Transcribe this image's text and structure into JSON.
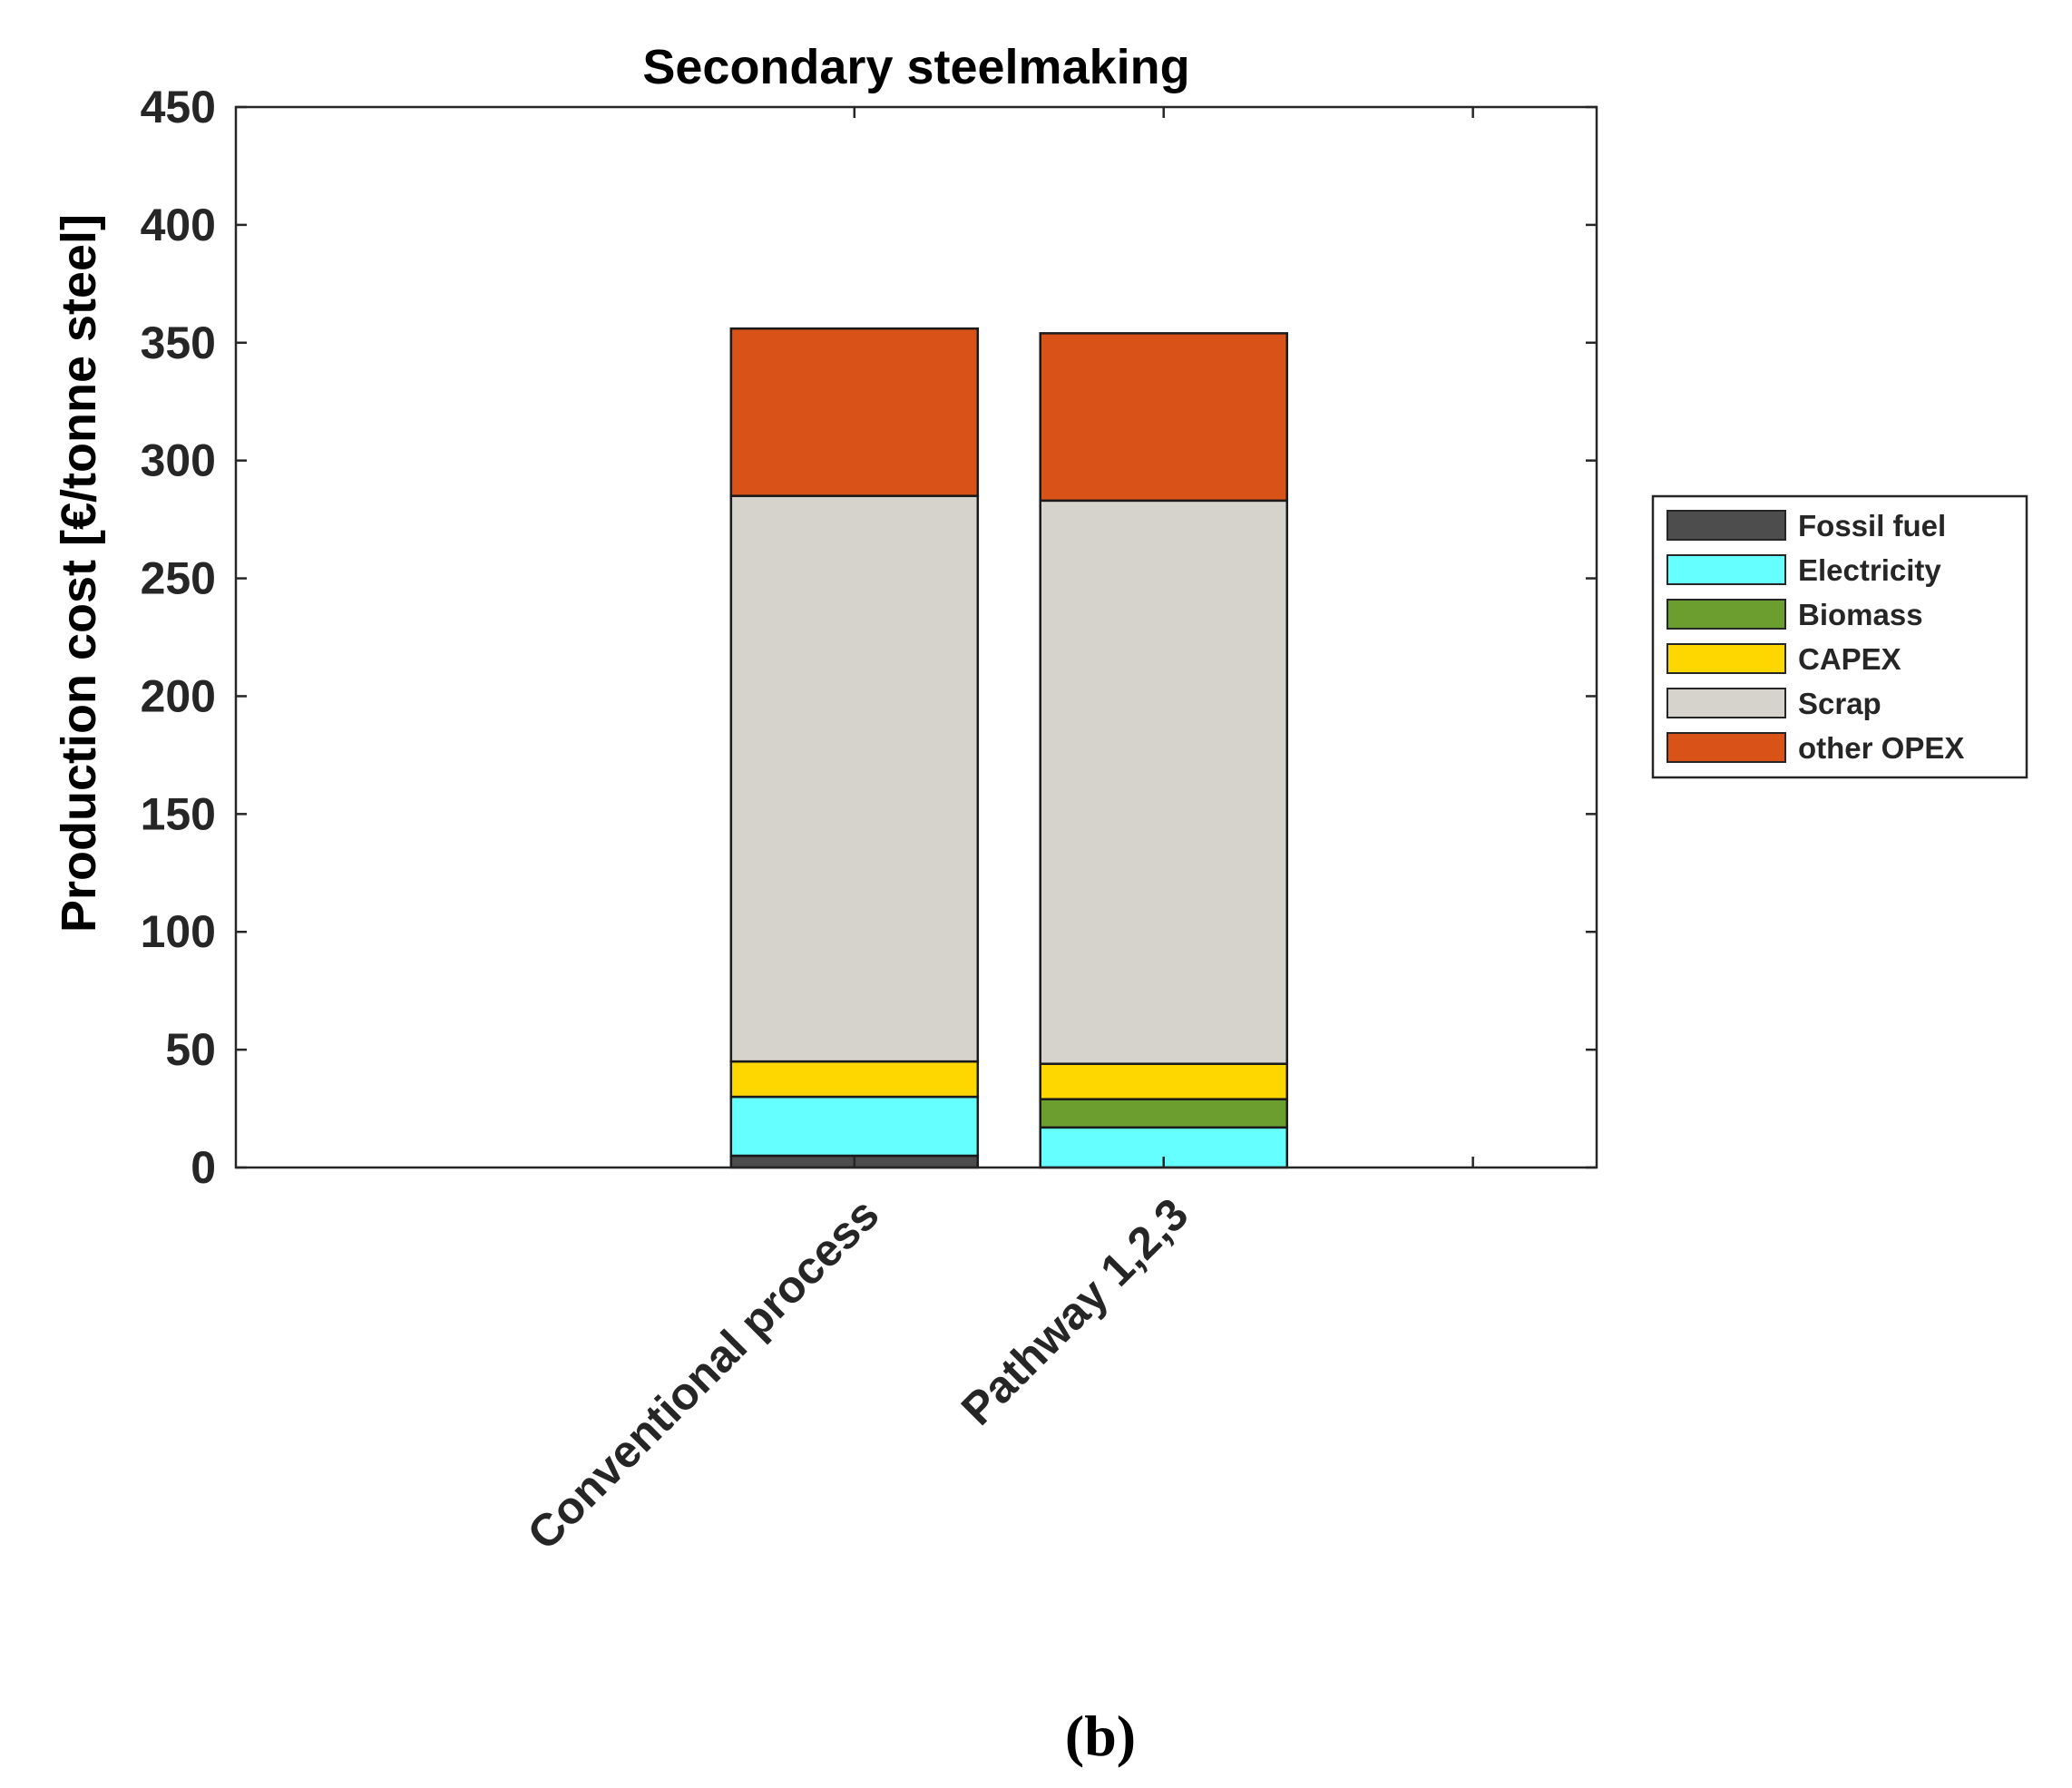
{
  "chart_data": {
    "type": "bar",
    "stacked": true,
    "title": "Secondary steelmaking",
    "xlabel": "",
    "ylabel": "Production cost [€/tonne steel]",
    "ylim": [
      0,
      450
    ],
    "yticks": [
      0,
      50,
      100,
      150,
      200,
      250,
      300,
      350,
      400,
      450
    ],
    "categories": [
      "Conventional process",
      "Pathway 1,2,3"
    ],
    "series": [
      {
        "name": "Fossil fuel",
        "color": "#4d4d4d",
        "values": [
          5,
          0
        ]
      },
      {
        "name": "Electricity",
        "color": "#66ffff",
        "values": [
          25,
          17
        ]
      },
      {
        "name": "Biomass",
        "color": "#6b9e2e",
        "values": [
          0,
          12
        ]
      },
      {
        "name": "CAPEX",
        "color": "#ffd700",
        "values": [
          15,
          15
        ]
      },
      {
        "name": "Scrap",
        "color": "#d6d2cc",
        "values": [
          240,
          239
        ]
      },
      {
        "name": "other OPEX",
        "color": "#d95319",
        "values": [
          71,
          71
        ]
      }
    ],
    "legend_position": "right-outside",
    "caption": "(b)"
  }
}
